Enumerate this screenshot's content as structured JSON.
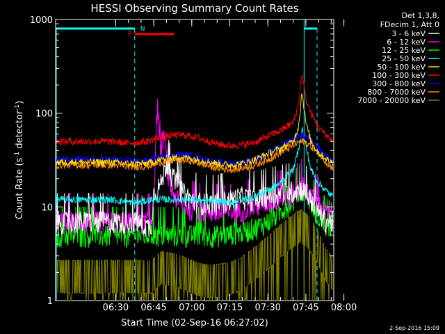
{
  "chart_data": {
    "type": "line",
    "title": "HESSI Observing Summary Count Rates",
    "xlabel": "Start Time (02-Sep-16 06:27:02)",
    "ylabel_main": "Count Rate (s",
    "ylabel_sup1": "-1",
    "ylabel_mid": " detector",
    "ylabel_sup2": "-1",
    "ylabel_end": ")",
    "y_scale": "log",
    "ylim": [
      1,
      1000
    ],
    "xlim_minutes": [
      6.3,
      116
    ],
    "x_ticks": [
      {
        "label": "06:30",
        "minutes": 30
      },
      {
        "label": "06:45",
        "minutes": 45
      },
      {
        "label": "07:00",
        "minutes": 60
      },
      {
        "label": "07:15",
        "minutes": 75
      },
      {
        "label": "07:30",
        "minutes": 90
      },
      {
        "label": "07:45",
        "minutes": 105
      },
      {
        "label": "08:00",
        "minutes": 120
      }
    ],
    "y_ticks": [
      {
        "label": "1",
        "value": 1
      },
      {
        "label": "10",
        "value": 10
      },
      {
        "label": "100",
        "value": 100
      },
      {
        "label": "1000",
        "value": 1000
      }
    ],
    "legend_header": [
      "Det 1,3,8,",
      "FDecim 1, Att 0"
    ],
    "series": [
      {
        "name": "3 - 6 keV",
        "color": "#ffffff",
        "points": [
          [
            28,
            7
          ],
          [
            38,
            7
          ],
          [
            44,
            6
          ],
          [
            45,
            14
          ],
          [
            48,
            18
          ],
          [
            50,
            30
          ],
          [
            52,
            22
          ],
          [
            54,
            18
          ],
          [
            57,
            14
          ],
          [
            60,
            12
          ],
          [
            65,
            11
          ],
          [
            70,
            11
          ],
          [
            75,
            12
          ],
          [
            80,
            13
          ],
          [
            85,
            12
          ],
          [
            90,
            13
          ],
          [
            95,
            14
          ],
          [
            100,
            15
          ],
          [
            103,
            16
          ],
          [
            105,
            14
          ],
          [
            108,
            11
          ],
          [
            110,
            9
          ],
          [
            113,
            7
          ],
          [
            116,
            7
          ],
          [
            119,
            7
          ]
        ]
      },
      {
        "name": "6 - 12 keV",
        "color": "#ff00ff",
        "points": [
          [
            28,
            7
          ],
          [
            38,
            7
          ],
          [
            44,
            7
          ],
          [
            45,
            15
          ],
          [
            46.5,
            135
          ],
          [
            47.5,
            40
          ],
          [
            49,
            60
          ],
          [
            51,
            18
          ],
          [
            54,
            12
          ],
          [
            58,
            10
          ],
          [
            63,
            9
          ],
          [
            68,
            9
          ],
          [
            73,
            8.5
          ],
          [
            78,
            9
          ],
          [
            83,
            10
          ],
          [
            88,
            11
          ],
          [
            93,
            12
          ],
          [
            98,
            13
          ],
          [
            102,
            15
          ],
          [
            104,
            17
          ],
          [
            106,
            15
          ],
          [
            108,
            12
          ],
          [
            111,
            10
          ],
          [
            114,
            8.5
          ],
          [
            117,
            8
          ],
          [
            119,
            8
          ]
        ]
      },
      {
        "name": "12 - 25 keV",
        "color": "#00ff00",
        "points": [
          [
            28,
            5
          ],
          [
            38,
            5
          ],
          [
            44,
            5
          ],
          [
            48,
            5
          ],
          [
            55,
            5
          ],
          [
            60,
            5
          ],
          [
            65,
            5
          ],
          [
            70,
            5
          ],
          [
            75,
            5.2
          ],
          [
            80,
            5.5
          ],
          [
            85,
            6
          ],
          [
            90,
            7
          ],
          [
            95,
            9
          ],
          [
            100,
            12
          ],
          [
            103,
            15
          ],
          [
            104,
            16
          ],
          [
            106,
            13
          ],
          [
            108,
            10
          ],
          [
            111,
            7
          ],
          [
            114,
            6
          ],
          [
            117,
            5
          ],
          [
            119,
            5
          ]
        ]
      },
      {
        "name": "25 - 50 keV",
        "color": "#00ffff",
        "points": [
          [
            28,
            12
          ],
          [
            38,
            11
          ],
          [
            44,
            12
          ],
          [
            48,
            12
          ],
          [
            55,
            12
          ],
          [
            60,
            12
          ],
          [
            65,
            11.5
          ],
          [
            70,
            11.5
          ],
          [
            75,
            11
          ],
          [
            80,
            12
          ],
          [
            85,
            13
          ],
          [
            90,
            15
          ],
          [
            95,
            18
          ],
          [
            100,
            25
          ],
          [
            102,
            40
          ],
          [
            103.5,
            68
          ],
          [
            105,
            45
          ],
          [
            107,
            25
          ],
          [
            110,
            18
          ],
          [
            114,
            14
          ],
          [
            117,
            12
          ],
          [
            119,
            11.5
          ]
        ]
      },
      {
        "name": "50 - 100 keV",
        "color": "#ffdd00",
        "points": [
          [
            28,
            30
          ],
          [
            35,
            29
          ],
          [
            42,
            29
          ],
          [
            48,
            32
          ],
          [
            55,
            34
          ],
          [
            60,
            33
          ],
          [
            65,
            31
          ],
          [
            70,
            29
          ],
          [
            75,
            28
          ],
          [
            80,
            29
          ],
          [
            85,
            32
          ],
          [
            90,
            37
          ],
          [
            95,
            42
          ],
          [
            100,
            50
          ],
          [
            102,
            70
          ],
          [
            103.5,
            170
          ],
          [
            105,
            80
          ],
          [
            107,
            50
          ],
          [
            110,
            38
          ],
          [
            114,
            31
          ],
          [
            117,
            29
          ],
          [
            119,
            28
          ]
        ]
      },
      {
        "name": "100 - 300 keV",
        "color": "#ff0000",
        "points": [
          [
            28,
            50
          ],
          [
            35,
            48
          ],
          [
            42,
            50
          ],
          [
            48,
            56
          ],
          [
            55,
            59
          ],
          [
            60,
            57
          ],
          [
            65,
            52
          ],
          [
            70,
            47
          ],
          [
            75,
            45
          ],
          [
            80,
            46
          ],
          [
            85,
            49
          ],
          [
            90,
            57
          ],
          [
            95,
            65
          ],
          [
            100,
            80
          ],
          [
            102,
            120
          ],
          [
            103.5,
            270
          ],
          [
            105,
            140
          ],
          [
            107,
            100
          ],
          [
            110,
            70
          ],
          [
            114,
            55
          ],
          [
            117,
            47
          ],
          [
            119,
            45
          ]
        ]
      },
      {
        "name": "300 - 800 keV",
        "color": "#0000ff",
        "points": [
          [
            28,
            32
          ],
          [
            35,
            31
          ],
          [
            42,
            31
          ],
          [
            48,
            34
          ],
          [
            55,
            36
          ],
          [
            60,
            35
          ],
          [
            65,
            32
          ],
          [
            70,
            30
          ],
          [
            75,
            29
          ],
          [
            80,
            30
          ],
          [
            85,
            32
          ],
          [
            90,
            37
          ],
          [
            95,
            44
          ],
          [
            100,
            52
          ],
          [
            102,
            57
          ],
          [
            104,
            58
          ],
          [
            106,
            55
          ],
          [
            108,
            48
          ],
          [
            111,
            40
          ],
          [
            114,
            32
          ],
          [
            117,
            28
          ],
          [
            119,
            27
          ]
        ]
      },
      {
        "name": "800 - 7000 keV",
        "color": "#ff8800",
        "points": [
          [
            28,
            28
          ],
          [
            35,
            27
          ],
          [
            42,
            27
          ],
          [
            48,
            30
          ],
          [
            55,
            32
          ],
          [
            60,
            31
          ],
          [
            65,
            28
          ],
          [
            70,
            26
          ],
          [
            75,
            25
          ],
          [
            80,
            26
          ],
          [
            85,
            28
          ],
          [
            90,
            32
          ],
          [
            95,
            38
          ],
          [
            100,
            45
          ],
          [
            102,
            49
          ],
          [
            104,
            50
          ],
          [
            106,
            47
          ],
          [
            108,
            42
          ],
          [
            111,
            35
          ],
          [
            114,
            28
          ],
          [
            117,
            25
          ],
          [
            119,
            24
          ]
        ]
      },
      {
        "name": "7000 - 20000 keV",
        "color": "#808000",
        "points": [
          [
            28,
            2
          ],
          [
            38,
            2
          ],
          [
            44,
            2
          ],
          [
            48,
            2.5
          ],
          [
            55,
            2.3
          ],
          [
            60,
            2
          ],
          [
            65,
            1.8
          ],
          [
            70,
            1.8
          ],
          [
            75,
            1.9
          ],
          [
            80,
            2.2
          ],
          [
            85,
            2.8
          ],
          [
            90,
            3.6
          ],
          [
            95,
            4.8
          ],
          [
            100,
            6.2
          ],
          [
            103,
            7
          ],
          [
            106,
            6
          ],
          [
            109,
            4.5
          ],
          [
            112,
            3
          ],
          [
            115,
            2.2
          ],
          [
            119,
            2
          ]
        ]
      }
    ],
    "markers": {
      "night_label": "N",
      "flare_label": "F",
      "cyan_color": "#00ffff",
      "red_color": "#ff0000"
    }
  },
  "footer": {
    "timestamp": "2-Sep-2016 15:09"
  }
}
